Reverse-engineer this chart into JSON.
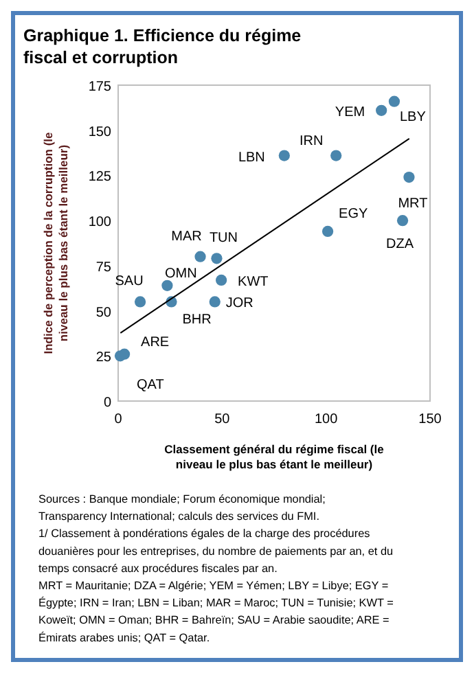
{
  "chart_data": {
    "type": "scatter",
    "title": "Graphique 1.  Efficience du régime fiscal et corruption",
    "xlabel": "Classement général du régime fiscal (le niveau le plus bas étant le meilleur)",
    "ylabel": "Indice de perception de la corruption (le niveau le plus bas étant le meilleur)",
    "xlim": [
      0,
      150
    ],
    "xticks": [
      0,
      50,
      100,
      150
    ],
    "ylim": [
      0,
      175
    ],
    "yticks": [
      0,
      25,
      50,
      75,
      100,
      125,
      150,
      175
    ],
    "series": [
      {
        "color": "#4a86ad",
        "marker": "circle",
        "x": [
          1,
          3,
          10.6,
          23.6,
          25.6,
          39.5,
          47.4,
          49.6,
          46.5,
          79.9,
          104.8,
          100.8,
          126.6,
          132.8,
          139.9,
          136.8
        ],
        "values": [
          25,
          26,
          55,
          64,
          55,
          80,
          79,
          67,
          55,
          136,
          136,
          94,
          161,
          166,
          124,
          100
        ]
      },
      {
        "type": "line",
        "color": "#000000",
        "marker": "none",
        "x": [
          1.1,
          140
        ],
        "values": [
          37.7,
          145.4
        ]
      }
    ],
    "annotations": [
      {
        "text": "QAT",
        "x": 1,
        "y": 25
      },
      {
        "text": "ARE",
        "x": 3,
        "y": 26
      },
      {
        "text": "SAU",
        "x": 10.6,
        "y": 55
      },
      {
        "text": "OMN",
        "x": 23.6,
        "y": 64
      },
      {
        "text": "BHR",
        "x": 25.6,
        "y": 55
      },
      {
        "text": "MAR",
        "x": 39.5,
        "y": 80
      },
      {
        "text": "TUN",
        "x": 47.4,
        "y": 79
      },
      {
        "text": "KWT",
        "x": 49.6,
        "y": 67
      },
      {
        "text": "JOR",
        "x": 46.5,
        "y": 55
      },
      {
        "text": "LBN",
        "x": 79.9,
        "y": 136
      },
      {
        "text": "IRN",
        "x": 104.8,
        "y": 136
      },
      {
        "text": "EGY",
        "x": 100.8,
        "y": 94
      },
      {
        "text": "YEM",
        "x": 126.6,
        "y": 161
      },
      {
        "text": "LBY",
        "x": 132.8,
        "y": 166
      },
      {
        "text": "MRT",
        "x": 139.9,
        "y": 124
      },
      {
        "text": "DZA",
        "x": 136.8,
        "y": 100
      },
      "Sources :  Banque mondiale; Forum économique mondial;",
      "Transparency International; calculs des services du FMI.",
      "1/ Classement à pondérations égales de la charge des procédures",
      "douanières pour les entreprises, du nombre de paiements par an, et du",
      "temps consacré aux procédures fiscales par an.",
      "MRT = Mauritanie; DZA = Algérie; YEM = Yémen;  LBY = Libye; EGY =",
      "Égypte; IRN = Iran;  LBN = Liban; MAR = Maroc; TUN = Tunisie; KWT =",
      "Koweït; OMN = Oman; BHR = Bahreïn; SAU = Arabie saoudite; ARE =",
      "Émirats arabes unis; QAT = Qatar."
    ]
  }
}
